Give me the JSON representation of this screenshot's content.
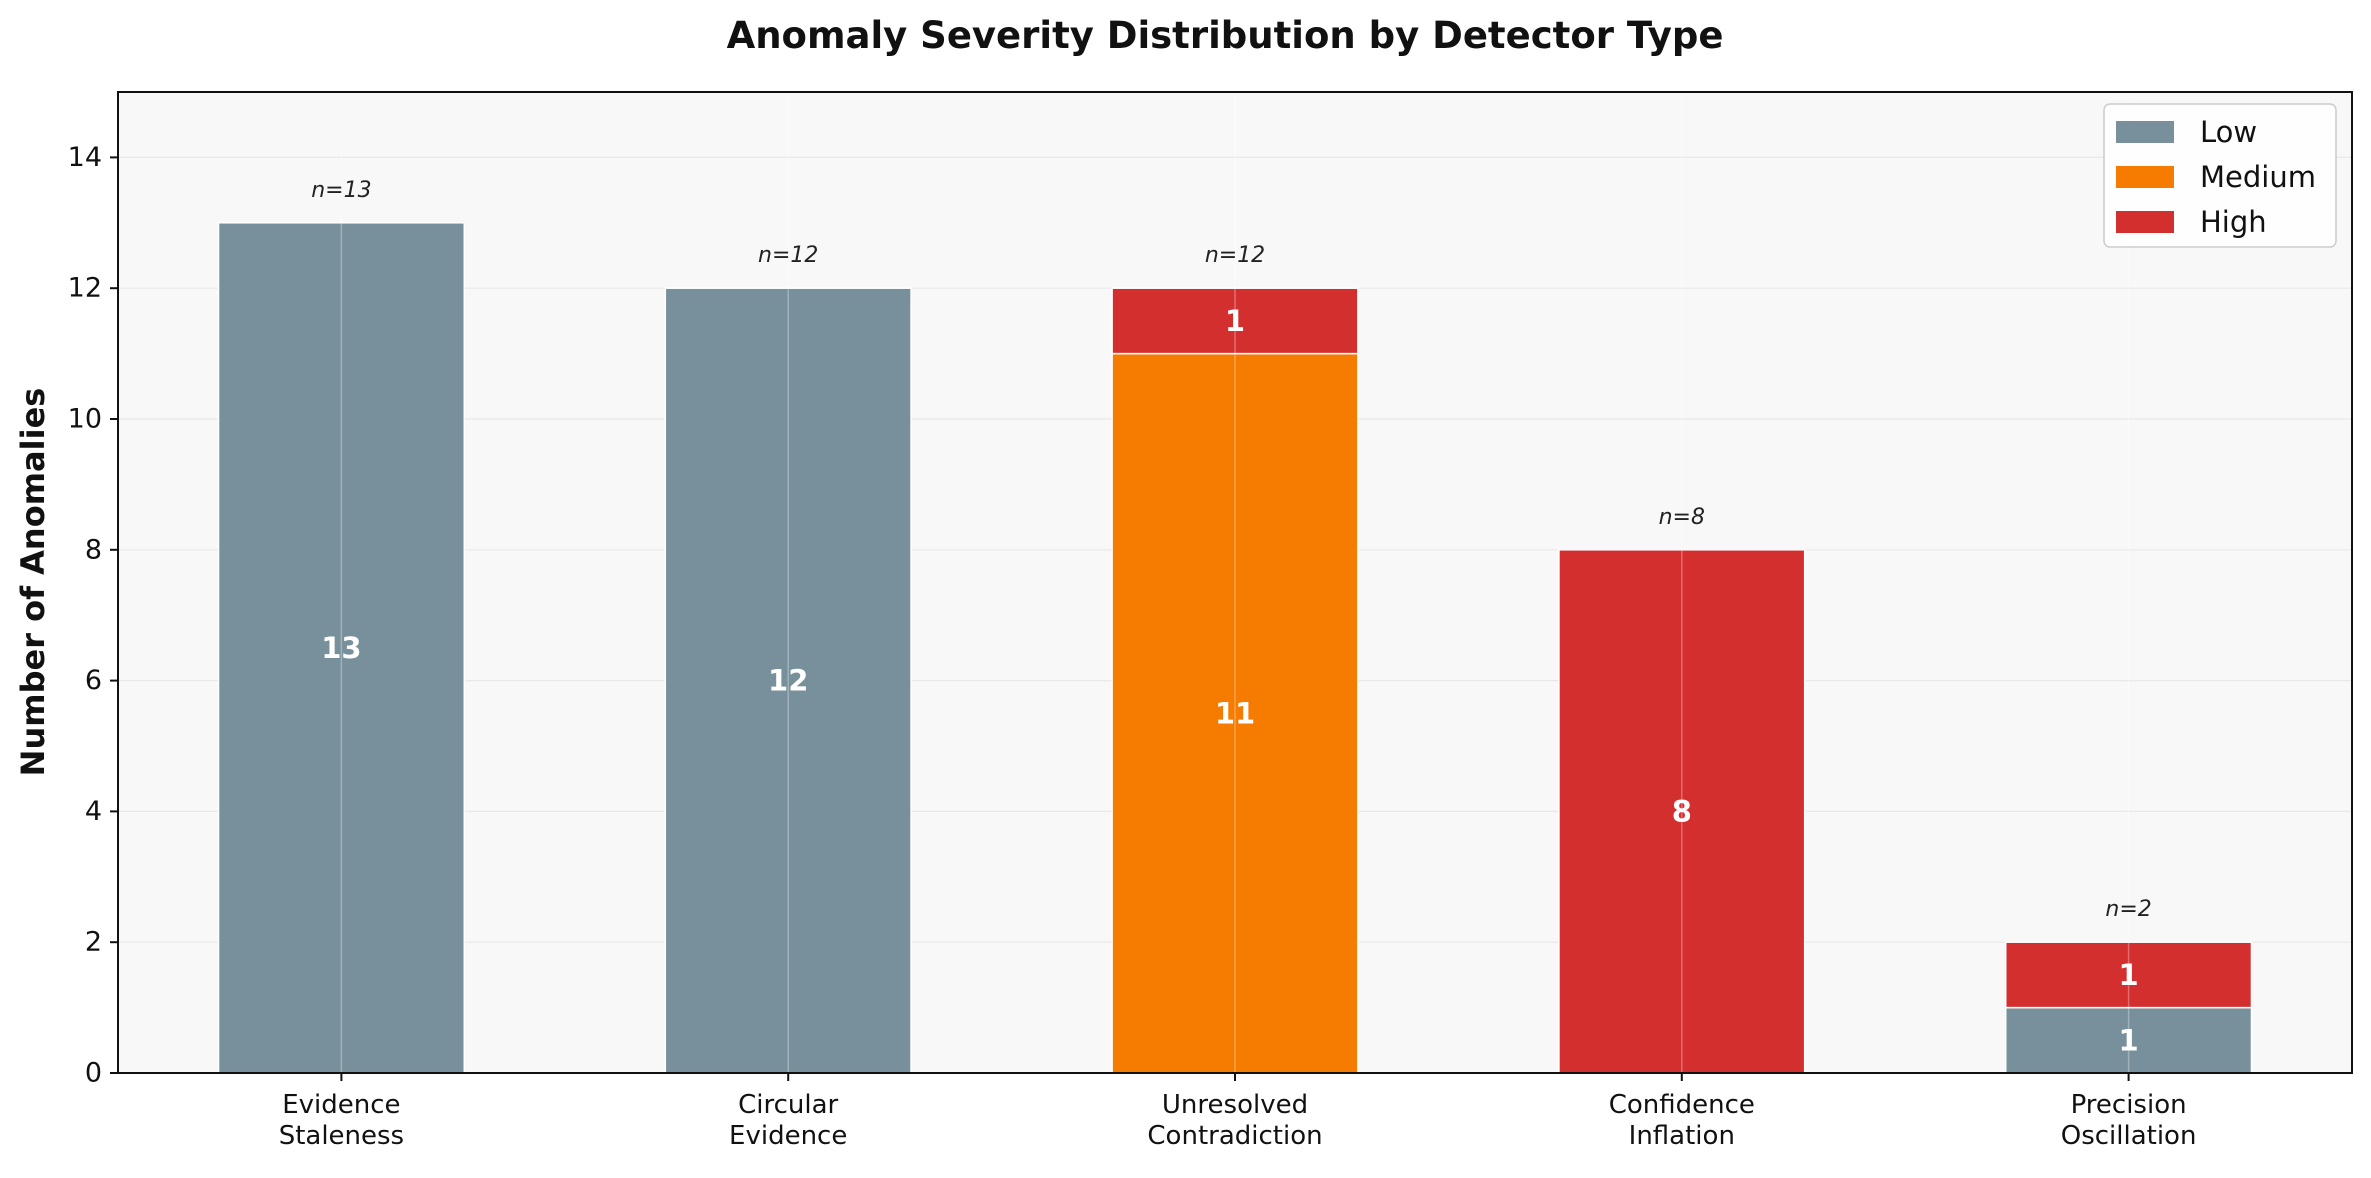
{
  "chart_data": {
    "type": "bar",
    "stacked": true,
    "title": "Anomaly Severity Distribution by Detector Type",
    "xlabel": "",
    "ylabel": "Number of Anomalies",
    "ylim": [
      0,
      15
    ],
    "yticks": [
      0,
      2,
      4,
      6,
      8,
      10,
      12,
      14
    ],
    "grid": true,
    "legend_position": "top-right",
    "categories": [
      [
        "Evidence",
        "Staleness"
      ],
      [
        "Circular",
        "Evidence"
      ],
      [
        "Unresolved",
        "Contradiction"
      ],
      [
        "Confidence",
        "Inflation"
      ],
      [
        "Precision",
        "Oscillation"
      ]
    ],
    "series": [
      {
        "name": "Low",
        "color": "#78909c",
        "values": [
          13,
          12,
          0,
          0,
          1
        ]
      },
      {
        "name": "Medium",
        "color": "#f57c00",
        "values": [
          0,
          0,
          11,
          0,
          0
        ]
      },
      {
        "name": "High",
        "color": "#d32f2f",
        "values": [
          0,
          0,
          1,
          8,
          1
        ]
      }
    ],
    "totals": [
      "n=13",
      "n=12",
      "n=12",
      "n=8",
      "n=2"
    ]
  },
  "colors": {
    "plot_background": "#f8f8f8",
    "grid": "#e8e8e8"
  }
}
